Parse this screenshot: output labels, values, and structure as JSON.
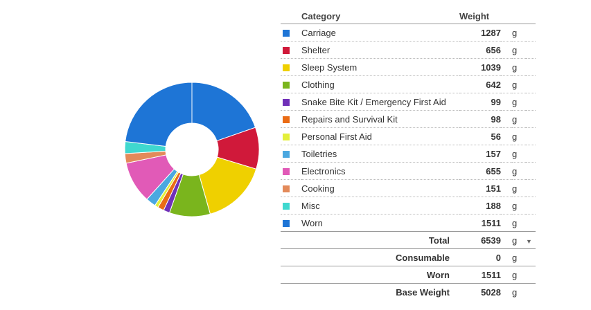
{
  "table": {
    "headers": {
      "category": "Category",
      "weight": "Weight"
    },
    "rows": [
      {
        "name": "Carriage",
        "weight": "1287",
        "unit": "g",
        "color": "#1e75d6"
      },
      {
        "name": "Shelter",
        "weight": "656",
        "unit": "g",
        "color": "#d0193a"
      },
      {
        "name": "Sleep System",
        "weight": "1039",
        "unit": "g",
        "color": "#efd000"
      },
      {
        "name": "Clothing",
        "weight": "642",
        "unit": "g",
        "color": "#7ab51d"
      },
      {
        "name": "Snake Bite Kit / Emergency First Aid",
        "weight": "99",
        "unit": "g",
        "color": "#7030b8"
      },
      {
        "name": "Repairs and Survival Kit",
        "weight": "98",
        "unit": "g",
        "color": "#ea6c15"
      },
      {
        "name": "Personal First Aid",
        "weight": "56",
        "unit": "g",
        "color": "#e3ef3a"
      },
      {
        "name": "Toiletries",
        "weight": "157",
        "unit": "g",
        "color": "#4ba8e0"
      },
      {
        "name": "Electronics",
        "weight": "655",
        "unit": "g",
        "color": "#e15ab7"
      },
      {
        "name": "Cooking",
        "weight": "151",
        "unit": "g",
        "color": "#e38a5a"
      },
      {
        "name": "Misc",
        "weight": "188",
        "unit": "g",
        "color": "#3fd8cf"
      },
      {
        "name": "Worn",
        "weight": "1511",
        "unit": "g",
        "color": "#1e75d6"
      }
    ],
    "totals": [
      {
        "label": "Total",
        "value": "6539",
        "unit": "g",
        "has_menu": true
      },
      {
        "label": "Consumable",
        "value": "0",
        "unit": "g"
      },
      {
        "label": "Worn",
        "value": "1511",
        "unit": "g"
      },
      {
        "label": "Base Weight",
        "value": "5028",
        "unit": "g"
      }
    ],
    "menu_icon": "chevron-down-icon"
  },
  "chart_data": {
    "type": "pie",
    "donut": true,
    "categories": [
      "Carriage",
      "Shelter",
      "Sleep System",
      "Clothing",
      "Snake Bite Kit / Emergency First Aid",
      "Repairs and Survival Kit",
      "Personal First Aid",
      "Toiletries",
      "Electronics",
      "Cooking",
      "Misc",
      "Worn"
    ],
    "values": [
      1287,
      656,
      1039,
      642,
      99,
      98,
      56,
      157,
      655,
      151,
      188,
      1511
    ],
    "colors": [
      "#1e75d6",
      "#d0193a",
      "#efd000",
      "#7ab51d",
      "#7030b8",
      "#ea6c15",
      "#e3ef3a",
      "#4ba8e0",
      "#e15ab7",
      "#e38a5a",
      "#3fd8cf",
      "#1e75d6"
    ]
  }
}
